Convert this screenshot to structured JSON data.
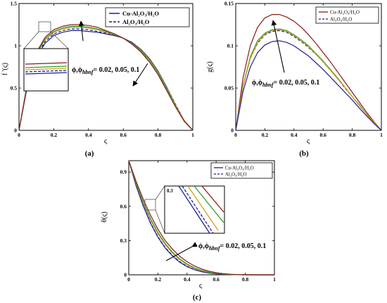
{
  "chart_data": [
    {
      "id": "a",
      "type": "line",
      "panel_label": "(a)",
      "title": "",
      "xlabel": "ς",
      "ylabel": "f '(ς)",
      "xlim": [
        0,
        1
      ],
      "ylim": [
        0,
        1.5
      ],
      "xticks": [
        0,
        0.2,
        0.4,
        0.6,
        0.8,
        1
      ],
      "yticks": [
        0,
        0.5,
        1,
        1.5
      ],
      "grid": false,
      "legend": {
        "placement": "top-right",
        "entries": [
          "Cu-Al₂O₃/H₂O",
          "Al₂O₃/H₂O"
        ]
      },
      "annotation": {
        "prefix": "ϕ,ϕ",
        "subscript": "hbnf",
        "values": "= 0.02, 0.05, 0.1"
      },
      "series": [
        {
          "legend_index": 0,
          "color": "#1f1f8f",
          "dash": "solid",
          "x": [
            0,
            0.05,
            0.1,
            0.15,
            0.2,
            0.25,
            0.3,
            0.35,
            0.4,
            0.45,
            0.5,
            0.55,
            0.6,
            0.65,
            0.7,
            0.75,
            0.8,
            0.85,
            0.9,
            0.95,
            1
          ],
          "y": [
            0,
            0.54,
            0.86,
            1.03,
            1.12,
            1.16,
            1.18,
            1.18,
            1.17,
            1.16,
            1.14,
            1.12,
            1.09,
            1.04,
            0.96,
            0.85,
            0.7,
            0.51,
            0.3,
            0.12,
            0
          ]
        },
        {
          "legend_index": 1,
          "color": "#1f1f8f",
          "dash": "dashed",
          "x": [
            0,
            0.05,
            0.1,
            0.15,
            0.2,
            0.25,
            0.3,
            0.35,
            0.4,
            0.45,
            0.5,
            0.55,
            0.6,
            0.65,
            0.7,
            0.75,
            0.8,
            0.85,
            0.9,
            0.95,
            1
          ],
          "y": [
            0,
            0.55,
            0.87,
            1.05,
            1.14,
            1.18,
            1.2,
            1.2,
            1.19,
            1.17,
            1.15,
            1.12,
            1.09,
            1.04,
            0.96,
            0.85,
            0.7,
            0.51,
            0.31,
            0.12,
            0
          ]
        },
        {
          "legend_index": null,
          "color": "#d4a017",
          "dash": "solid",
          "x": [
            0,
            0.05,
            0.1,
            0.15,
            0.2,
            0.25,
            0.3,
            0.35,
            0.4,
            0.45,
            0.5,
            0.55,
            0.6,
            0.65,
            0.7,
            0.75,
            0.8,
            0.85,
            0.9,
            0.95,
            1
          ],
          "y": [
            0,
            0.56,
            0.89,
            1.07,
            1.16,
            1.2,
            1.22,
            1.22,
            1.21,
            1.19,
            1.16,
            1.13,
            1.09,
            1.03,
            0.95,
            0.84,
            0.69,
            0.5,
            0.3,
            0.12,
            0
          ]
        },
        {
          "legend_index": null,
          "color": "#2ca02c",
          "dash": "solid",
          "x": [
            0,
            0.05,
            0.1,
            0.15,
            0.2,
            0.25,
            0.3,
            0.35,
            0.4,
            0.45,
            0.5,
            0.55,
            0.6,
            0.65,
            0.7,
            0.75,
            0.8,
            0.85,
            0.9,
            0.95,
            1
          ],
          "y": [
            0,
            0.57,
            0.9,
            1.08,
            1.17,
            1.21,
            1.23,
            1.23,
            1.22,
            1.2,
            1.17,
            1.13,
            1.09,
            1.03,
            0.94,
            0.83,
            0.68,
            0.49,
            0.29,
            0.11,
            0
          ]
        },
        {
          "legend_index": null,
          "color": "#8b1a1a",
          "dash": "solid",
          "x": [
            0,
            0.05,
            0.1,
            0.15,
            0.2,
            0.25,
            0.3,
            0.35,
            0.4,
            0.45,
            0.5,
            0.55,
            0.6,
            0.65,
            0.7,
            0.75,
            0.8,
            0.85,
            0.9,
            0.95,
            1
          ],
          "y": [
            0,
            0.58,
            0.92,
            1.1,
            1.19,
            1.23,
            1.25,
            1.25,
            1.24,
            1.22,
            1.18,
            1.14,
            1.09,
            1.02,
            0.93,
            0.81,
            0.66,
            0.47,
            0.28,
            0.11,
            0
          ]
        }
      ]
    },
    {
      "id": "b",
      "type": "line",
      "panel_label": "(b)",
      "title": "",
      "xlabel": "ς",
      "ylabel": "g(ς)",
      "xlim": [
        0,
        1
      ],
      "ylim": [
        0,
        0.15
      ],
      "xticks": [
        0,
        0.2,
        0.4,
        0.6,
        0.8,
        1
      ],
      "yticks": [
        0,
        0.05,
        0.1,
        0.15
      ],
      "grid": false,
      "legend": {
        "placement": "top-right",
        "entries": [
          "Cu-Al₂O₃/H₂O",
          "Al₂O₃/H₂O"
        ]
      },
      "annotation": {
        "prefix": "ϕ,ϕ",
        "subscript": "hbnf",
        "values": "= 0.02, 0.05, 0.1"
      },
      "series": [
        {
          "legend_index": 0,
          "color": "#8b1a1a",
          "dash": "solid",
          "x": [
            0,
            0.05,
            0.1,
            0.15,
            0.2,
            0.25,
            0.3,
            0.35,
            0.4,
            0.45,
            0.5,
            0.55,
            0.6,
            0.65,
            0.7,
            0.75,
            0.8,
            0.85,
            0.9,
            0.95,
            1
          ],
          "y": [
            0,
            0.062,
            0.1,
            0.122,
            0.133,
            0.137,
            0.137,
            0.134,
            0.129,
            0.122,
            0.113,
            0.103,
            0.092,
            0.081,
            0.069,
            0.057,
            0.045,
            0.033,
            0.021,
            0.01,
            0
          ]
        },
        {
          "legend_index": 1,
          "color": "#1f1f8f",
          "dash": "dashed",
          "x": [
            0,
            0.05,
            0.1,
            0.15,
            0.2,
            0.25,
            0.3,
            0.35,
            0.4,
            0.45,
            0.5,
            0.55,
            0.6,
            0.65,
            0.7,
            0.75,
            0.8,
            0.85,
            0.9,
            0.95,
            1
          ],
          "y": [
            0,
            0.052,
            0.085,
            0.103,
            0.113,
            0.117,
            0.118,
            0.116,
            0.111,
            0.105,
            0.098,
            0.09,
            0.081,
            0.071,
            0.061,
            0.05,
            0.04,
            0.029,
            0.019,
            0.009,
            0
          ]
        },
        {
          "legend_index": null,
          "color": "#2ca02c",
          "dash": "solid",
          "x": [
            0,
            0.05,
            0.1,
            0.15,
            0.2,
            0.25,
            0.3,
            0.35,
            0.4,
            0.45,
            0.5,
            0.55,
            0.6,
            0.65,
            0.7,
            0.75,
            0.8,
            0.85,
            0.9,
            0.95,
            1
          ],
          "y": [
            0,
            0.053,
            0.087,
            0.106,
            0.115,
            0.119,
            0.12,
            0.118,
            0.113,
            0.107,
            0.1,
            0.091,
            0.082,
            0.072,
            0.062,
            0.051,
            0.04,
            0.03,
            0.019,
            0.009,
            0
          ]
        },
        {
          "legend_index": null,
          "color": "#d4a017",
          "dash": "solid",
          "x": [
            0,
            0.05,
            0.1,
            0.15,
            0.2,
            0.25,
            0.3,
            0.35,
            0.4,
            0.45,
            0.5,
            0.55,
            0.6,
            0.65,
            0.7,
            0.75,
            0.8,
            0.85,
            0.9,
            0.95,
            1
          ],
          "y": [
            0,
            0.052,
            0.085,
            0.104,
            0.114,
            0.118,
            0.119,
            0.117,
            0.112,
            0.106,
            0.099,
            0.09,
            0.081,
            0.071,
            0.061,
            0.051,
            0.04,
            0.029,
            0.019,
            0.009,
            0
          ]
        },
        {
          "legend_index": null,
          "color": "#1f1f8f",
          "dash": "solid",
          "x": [
            0,
            0.05,
            0.1,
            0.15,
            0.2,
            0.25,
            0.3,
            0.35,
            0.4,
            0.45,
            0.5,
            0.55,
            0.6,
            0.65,
            0.7,
            0.75,
            0.8,
            0.85,
            0.9,
            0.95,
            1
          ],
          "y": [
            0,
            0.046,
            0.075,
            0.092,
            0.101,
            0.105,
            0.106,
            0.104,
            0.1,
            0.094,
            0.088,
            0.08,
            0.072,
            0.063,
            0.054,
            0.045,
            0.036,
            0.026,
            0.017,
            0.008,
            0
          ]
        }
      ]
    },
    {
      "id": "c",
      "type": "line",
      "panel_label": "(c)",
      "title": "",
      "xlabel": "ς",
      "ylabel": "θ(ς)",
      "xlim": [
        0,
        1
      ],
      "ylim": [
        0,
        1
      ],
      "xticks": [
        0,
        0.2,
        0.4,
        0.6,
        0.8,
        1
      ],
      "yticks": [
        0,
        0.3,
        0.6,
        0.9
      ],
      "grid": false,
      "legend": {
        "placement": "top-right",
        "entries": [
          "Cu-Al₂O₃/H₂O",
          "Al₂O₃/H₂O"
        ]
      },
      "annotation": {
        "prefix": "ϕ,ϕ",
        "subscript": "hbnf",
        "values": "= 0.02, 0.05, 0.1"
      },
      "inset_label": "0.3",
      "series": [
        {
          "legend_index": 0,
          "color": "#1f1f8f",
          "dash": "solid",
          "x": [
            0,
            0.05,
            0.1,
            0.15,
            0.2,
            0.25,
            0.3,
            0.35,
            0.4,
            0.45,
            0.5,
            0.55,
            0.6,
            0.65,
            0.7,
            0.75,
            0.8,
            0.9,
            1
          ],
          "y": [
            1,
            0.78,
            0.6,
            0.45,
            0.33,
            0.235,
            0.165,
            0.11,
            0.072,
            0.045,
            0.027,
            0.015,
            0.008,
            0.004,
            0.002,
            0.001,
            0,
            0,
            0
          ]
        },
        {
          "legend_index": 1,
          "color": "#1f1f8f",
          "dash": "dashed",
          "x": [
            0,
            0.05,
            0.1,
            0.15,
            0.2,
            0.25,
            0.3,
            0.35,
            0.4,
            0.45,
            0.5,
            0.55,
            0.6,
            0.65,
            0.7,
            0.75,
            0.8,
            0.9,
            1
          ],
          "y": [
            1,
            0.785,
            0.605,
            0.455,
            0.335,
            0.24,
            0.17,
            0.115,
            0.075,
            0.047,
            0.028,
            0.016,
            0.009,
            0.004,
            0.002,
            0.001,
            0,
            0,
            0
          ]
        },
        {
          "legend_index": null,
          "color": "#d4a017",
          "dash": "solid",
          "x": [
            0,
            0.05,
            0.1,
            0.15,
            0.2,
            0.25,
            0.3,
            0.35,
            0.4,
            0.45,
            0.5,
            0.55,
            0.6,
            0.65,
            0.7,
            0.75,
            0.8,
            0.9,
            1
          ],
          "y": [
            1,
            0.8,
            0.625,
            0.48,
            0.36,
            0.265,
            0.19,
            0.132,
            0.088,
            0.057,
            0.035,
            0.021,
            0.012,
            0.006,
            0.003,
            0.001,
            0,
            0,
            0
          ]
        },
        {
          "legend_index": null,
          "color": "#2ca02c",
          "dash": "solid",
          "x": [
            0,
            0.05,
            0.1,
            0.15,
            0.2,
            0.25,
            0.3,
            0.35,
            0.4,
            0.45,
            0.5,
            0.55,
            0.6,
            0.65,
            0.7,
            0.75,
            0.8,
            0.9,
            1
          ],
          "y": [
            1,
            0.805,
            0.635,
            0.49,
            0.372,
            0.275,
            0.199,
            0.14,
            0.095,
            0.062,
            0.039,
            0.024,
            0.014,
            0.007,
            0.003,
            0.001,
            0,
            0,
            0
          ]
        },
        {
          "legend_index": null,
          "color": "#8b1a1a",
          "dash": "solid",
          "x": [
            0,
            0.05,
            0.1,
            0.15,
            0.2,
            0.25,
            0.3,
            0.35,
            0.4,
            0.45,
            0.5,
            0.55,
            0.6,
            0.65,
            0.7,
            0.75,
            0.8,
            0.9,
            1
          ],
          "y": [
            1,
            0.82,
            0.66,
            0.52,
            0.4,
            0.3,
            0.225,
            0.162,
            0.115,
            0.078,
            0.051,
            0.032,
            0.019,
            0.01,
            0.005,
            0.002,
            0.001,
            0,
            0
          ]
        }
      ]
    }
  ]
}
